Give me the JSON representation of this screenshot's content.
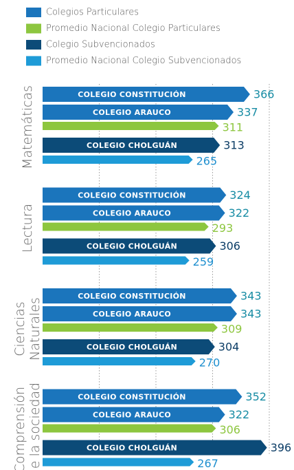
{
  "chart_data": {
    "type": "bar",
    "legend": [
      {
        "label": "Colegios Particulares",
        "color": "#1b75bc"
      },
      {
        "label": "Promedio Nacional Colegio Particulares",
        "color": "#8dc63f"
      },
      {
        "label": "Colegio Subvencionados",
        "color": "#0c4b78"
      },
      {
        "label": "Promedio Nacional Colegio Subvencionados",
        "color": "#1e9bd7"
      }
    ],
    "categories": [
      "Matemáticas",
      "Lectura",
      "Ciencias Naturales",
      "Comprensión de la sociedad"
    ],
    "series": [
      {
        "name": "COLEGIO CONSTITUCIÓN",
        "color": "#1b75bc",
        "label_color": "#178ca4",
        "values": [
          366,
          324,
          343,
          352
        ]
      },
      {
        "name": "COLEGIO ARAUCO",
        "color": "#1b75bc",
        "label_color": "#178ca4",
        "values": [
          337,
          322,
          343,
          322
        ]
      },
      {
        "color": "#8dc63f",
        "label_color": "#8dc63f",
        "values": [
          311,
          293,
          309,
          306
        ]
      },
      {
        "name": "COLEGIO CHOLGUÁN",
        "color": "#0c4b78",
        "label_color": "#0c3d66",
        "values": [
          313,
          306,
          304,
          396
        ]
      },
      {
        "color": "#1e9bd7",
        "label_color": "#1e8fcf",
        "values": [
          265,
          259,
          270,
          267
        ]
      }
    ],
    "xlim": [
      0,
      400
    ],
    "xticks": [
      100,
      200,
      300,
      400
    ],
    "grid": true
  }
}
